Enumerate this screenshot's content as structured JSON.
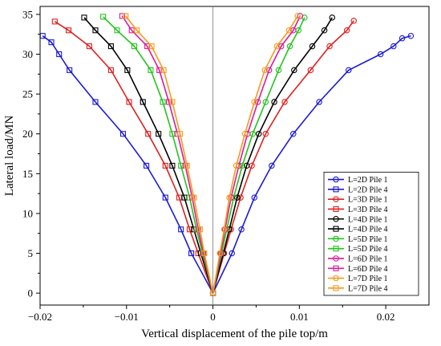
{
  "chart_data": {
    "type": "line",
    "xlabel": "Vertical displacement of the pile top/m",
    "ylabel": "Lateral load/MN",
    "xlim": [
      -0.02,
      0.025
    ],
    "ylim": [
      -1.5,
      36
    ],
    "xticks": [
      -0.02,
      -0.01,
      0,
      0.01,
      0.02
    ],
    "xtick_labels": [
      "−0.02",
      "−0.01",
      "0",
      "0.01",
      "0.02"
    ],
    "yticks": [
      0,
      5,
      10,
      15,
      20,
      25,
      30,
      35
    ],
    "ytick_labels": [
      "0",
      "5",
      "10",
      "15",
      "20",
      "25",
      "30",
      "35"
    ],
    "grid": false,
    "legend_position": "bottom-right",
    "series": [
      {
        "name": "L=2D Pile 1",
        "color": "#1a1ad6",
        "marker": "circle",
        "x": [
          0,
          0.0022,
          0.0033,
          0.0048,
          0.0068,
          0.0093,
          0.0123,
          0.0157,
          0.0194,
          0.0209,
          0.0219,
          0.0229
        ],
        "y": [
          0,
          5,
          8,
          12,
          16,
          20,
          24,
          28,
          30,
          31,
          32,
          32.3
        ]
      },
      {
        "name": "L=2D Pile 4",
        "color": "#1a1ad6",
        "marker": "square",
        "x": [
          0,
          -0.0025,
          -0.0037,
          -0.0055,
          -0.0077,
          -0.0104,
          -0.0136,
          -0.0166,
          -0.0178,
          -0.0187,
          -0.0197
        ],
        "y": [
          0,
          5,
          8,
          12,
          16,
          20,
          24,
          28,
          30,
          31.5,
          32.3
        ]
      },
      {
        "name": "L=3D Pile 1",
        "color": "#e01f1f",
        "marker": "circle",
        "x": [
          0,
          0.0013,
          0.0021,
          0.0032,
          0.0045,
          0.0061,
          0.0083,
          0.0113,
          0.0135,
          0.0155,
          0.0163
        ],
        "y": [
          0,
          5,
          8,
          12,
          16,
          20,
          24,
          28,
          31,
          33,
          34.2
        ]
      },
      {
        "name": "L=3D Pile 4",
        "color": "#e01f1f",
        "marker": "square",
        "x": [
          0,
          -0.0017,
          -0.0027,
          -0.0039,
          -0.0055,
          -0.0075,
          -0.0097,
          -0.0118,
          -0.0143,
          -0.0167,
          -0.0183
        ],
        "y": [
          0,
          5,
          8,
          12,
          16,
          20,
          24,
          28,
          31,
          33,
          34.1
        ]
      },
      {
        "name": "L=4D Pile 1",
        "color": "#000000",
        "marker": "circle",
        "x": [
          0,
          0.0012,
          0.0019,
          0.0028,
          0.0039,
          0.0053,
          0.0071,
          0.0094,
          0.0115,
          0.0129,
          0.0138
        ],
        "y": [
          0,
          5,
          8,
          12,
          16,
          20,
          24,
          28,
          31,
          33,
          34.6
        ]
      },
      {
        "name": "L=4D Pile 4",
        "color": "#000000",
        "marker": "square",
        "x": [
          0,
          -0.0014,
          -0.0022,
          -0.0033,
          -0.0047,
          -0.0063,
          -0.0081,
          -0.0099,
          -0.0118,
          -0.0136,
          -0.0149
        ],
        "y": [
          0,
          5,
          8,
          12,
          16,
          20,
          24,
          28,
          31,
          33,
          34.6
        ]
      },
      {
        "name": "L=5D Pile 1",
        "color": "#22c41c",
        "marker": "circle",
        "x": [
          0,
          0.001,
          0.0016,
          0.0024,
          0.0034,
          0.0046,
          0.0061,
          0.0076,
          0.0089,
          0.0099,
          0.0106
        ],
        "y": [
          0,
          5,
          8,
          12,
          16,
          20,
          24,
          28,
          31,
          33,
          34.6
        ]
      },
      {
        "name": "L=5D Pile 4",
        "color": "#22c41c",
        "marker": "square",
        "x": [
          0,
          -0.0012,
          -0.0019,
          -0.0027,
          -0.0037,
          -0.0047,
          -0.0058,
          -0.0072,
          -0.0091,
          -0.0111,
          -0.0127
        ],
        "y": [
          0,
          5,
          8,
          12,
          16,
          20,
          24,
          28,
          31,
          33,
          34.7
        ]
      },
      {
        "name": "L=6D Pile 1",
        "color": "#e0189a",
        "marker": "circle",
        "x": [
          0,
          0.0009,
          0.0014,
          0.0021,
          0.003,
          0.004,
          0.0052,
          0.0065,
          0.0079,
          0.0093,
          0.0101
        ],
        "y": [
          0,
          5,
          8,
          12,
          16,
          20,
          24,
          28,
          31,
          33,
          34.8
        ]
      },
      {
        "name": "L=6D Pile 4",
        "color": "#e0189a",
        "marker": "square",
        "x": [
          0,
          -0.0011,
          -0.0017,
          -0.0024,
          -0.0032,
          -0.0041,
          -0.0051,
          -0.0062,
          -0.0076,
          -0.0094,
          -0.0105
        ],
        "y": [
          0,
          5,
          8,
          12,
          16,
          20,
          24,
          28,
          31,
          33,
          34.8
        ]
      },
      {
        "name": "L=7D Pile 1",
        "color": "#f59a1c",
        "marker": "circle",
        "x": [
          0,
          0.0008,
          0.0013,
          0.0019,
          0.0027,
          0.0037,
          0.0048,
          0.006,
          0.0074,
          0.0088,
          0.0098
        ],
        "y": [
          0,
          5,
          8,
          12,
          16,
          20,
          24,
          28,
          31,
          33,
          34.8
        ]
      },
      {
        "name": "L=7D Pile 4",
        "color": "#f59a1c",
        "marker": "square",
        "x": [
          0,
          -0.001,
          -0.0015,
          -0.0022,
          -0.003,
          -0.0038,
          -0.0047,
          -0.0057,
          -0.0071,
          -0.0088,
          -0.0101
        ],
        "y": [
          0,
          5,
          8,
          12,
          16,
          20,
          24,
          28,
          31,
          33,
          34.8
        ]
      }
    ]
  }
}
